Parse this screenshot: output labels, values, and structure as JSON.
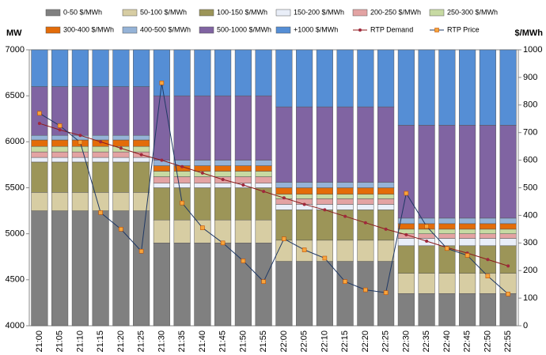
{
  "chart_data": {
    "type": "bar",
    "y_label": "MW",
    "y2_label": "$/MWh",
    "categories": [
      "21:00",
      "21:05",
      "21:10",
      "21:15",
      "21:20",
      "21:25",
      "21:30",
      "21:35",
      "21:40",
      "21:45",
      "21:50",
      "21:55",
      "22:00",
      "22:05",
      "22:10",
      "22:15",
      "22:20",
      "22:25",
      "22:30",
      "22:35",
      "22:40",
      "22:45",
      "22:50",
      "22:55"
    ],
    "ylim": [
      4000,
      7000
    ],
    "yticks": [
      4000,
      4500,
      5000,
      5500,
      6000,
      6500,
      7000
    ],
    "y2lim": [
      0,
      1000
    ],
    "y2ticks": [
      0,
      100,
      200,
      300,
      400,
      500,
      600,
      700,
      800,
      900,
      1000
    ],
    "series": [
      {
        "name": "0-50 $/MWh",
        "color": "#808080",
        "values": [
          5250,
          5250,
          5250,
          5250,
          5250,
          5250,
          4900,
          4900,
          4900,
          4900,
          4900,
          4900,
          4700,
          4700,
          4700,
          4700,
          4700,
          4700,
          4350,
          4350,
          4350,
          4350,
          4350,
          4350
        ]
      },
      {
        "name": "50-100 $/MWh",
        "color": "#d7cda3",
        "values": [
          200,
          200,
          200,
          200,
          200,
          200,
          250,
          250,
          250,
          250,
          250,
          250,
          230,
          230,
          230,
          230,
          230,
          230,
          220,
          220,
          220,
          220,
          220,
          220
        ]
      },
      {
        "name": "100-150 $/MWh",
        "color": "#9c9558",
        "values": [
          330,
          330,
          330,
          330,
          330,
          330,
          350,
          350,
          350,
          350,
          350,
          350,
          330,
          330,
          330,
          330,
          330,
          330,
          300,
          300,
          300,
          300,
          300,
          300
        ]
      },
      {
        "name": "150-200 $/MWh",
        "color": "#e9eef8",
        "values": [
          50,
          50,
          50,
          50,
          50,
          50,
          50,
          50,
          50,
          50,
          50,
          50,
          60,
          60,
          60,
          60,
          60,
          60,
          80,
          80,
          80,
          80,
          80,
          80
        ]
      },
      {
        "name": "200-250 $/MWh",
        "color": "#e3a3a3",
        "values": [
          60,
          60,
          60,
          60,
          60,
          60,
          70,
          70,
          70,
          70,
          70,
          70,
          60,
          60,
          60,
          60,
          60,
          60,
          50,
          50,
          50,
          50,
          50,
          50
        ]
      },
      {
        "name": "250-300 $/MWh",
        "color": "#c7daa2",
        "values": [
          60,
          60,
          60,
          60,
          60,
          60,
          60,
          60,
          60,
          60,
          60,
          60,
          50,
          50,
          50,
          50,
          50,
          50,
          50,
          50,
          50,
          50,
          50,
          50
        ]
      },
      {
        "name": "300-400 $/MWh",
        "color": "#e36c09",
        "values": [
          70,
          70,
          70,
          70,
          70,
          70,
          60,
          60,
          60,
          60,
          60,
          60,
          70,
          70,
          70,
          70,
          70,
          70,
          60,
          60,
          60,
          60,
          60,
          60
        ]
      },
      {
        "name": "400-500 $/MWh",
        "color": "#95b3d7",
        "values": [
          50,
          50,
          50,
          50,
          50,
          50,
          60,
          60,
          60,
          60,
          60,
          60,
          60,
          60,
          60,
          60,
          60,
          60,
          60,
          60,
          60,
          60,
          60,
          60
        ]
      },
      {
        "name": "500-1000 $/MWh",
        "color": "#8064a2",
        "values": [
          530,
          530,
          530,
          530,
          530,
          530,
          700,
          700,
          700,
          700,
          700,
          700,
          820,
          820,
          820,
          820,
          820,
          820,
          1010,
          1010,
          1010,
          1010,
          1010,
          1010
        ]
      },
      {
        "name": "+1000 $/MWh",
        "color": "#558ed5",
        "values": [
          400,
          400,
          400,
          400,
          400,
          400,
          500,
          500,
          500,
          500,
          500,
          500,
          620,
          620,
          620,
          620,
          620,
          620,
          820,
          820,
          820,
          820,
          820,
          820
        ]
      }
    ],
    "lines": [
      {
        "name": "RTP Demand",
        "color": "#8b1a1a",
        "marker_color": "#a0283c",
        "values": [
          6200,
          6130,
          6070,
          6000,
          5930,
          5860,
          5800,
          5730,
          5660,
          5590,
          5530,
          5460,
          5390,
          5320,
          5260,
          5190,
          5120,
          5050,
          4990,
          4920,
          4850,
          4790,
          4720,
          4650
        ]
      },
      {
        "name": "RTP Price",
        "axis": "y2",
        "color": "#1f3864",
        "marker_color": "#f7a53c",
        "values": [
          770,
          725,
          665,
          410,
          350,
          270,
          880,
          445,
          355,
          300,
          235,
          160,
          315,
          275,
          245,
          160,
          130,
          120,
          480,
          360,
          280,
          255,
          180,
          115
        ]
      }
    ]
  }
}
